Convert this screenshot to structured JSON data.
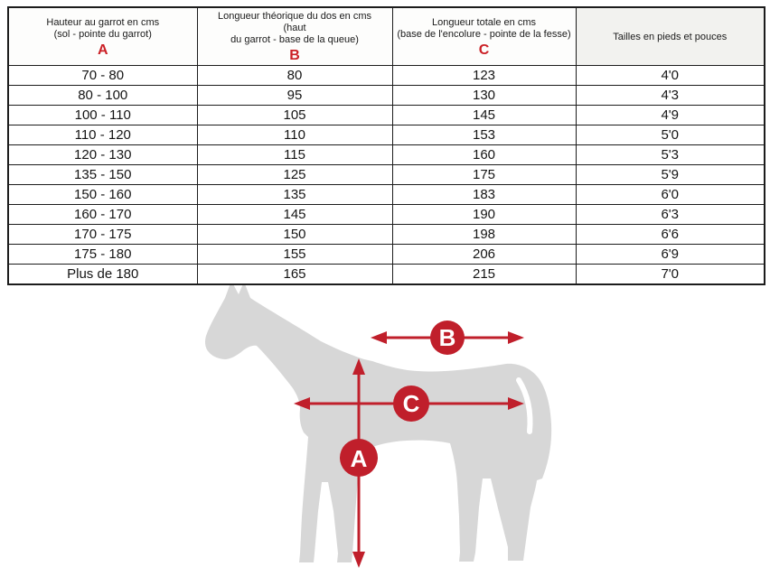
{
  "chart_data": {
    "type": "table",
    "columns": [
      {
        "title_lines": [
          "Hauteur au garrot en cms",
          "(sol - pointe du garrot)"
        ],
        "letter": "A"
      },
      {
        "title_lines": [
          "Longueur théorique du dos en cms      (haut",
          "du garrot - base de la queue)"
        ],
        "letter": "B"
      },
      {
        "title_lines": [
          "Longueur totale en cms",
          "(base de l'encolure - pointe de la fesse)"
        ],
        "letter": "C"
      },
      {
        "title_lines": [
          "Tailles en pieds et pouces"
        ],
        "letter": ""
      }
    ],
    "rows": [
      [
        "70 - 80",
        "80",
        "123",
        "4'0"
      ],
      [
        "80 - 100",
        "95",
        "130",
        "4'3"
      ],
      [
        "100 - 110",
        "105",
        "145",
        "4'9"
      ],
      [
        "110 - 120",
        "110",
        "153",
        "5'0"
      ],
      [
        "120 - 130",
        "115",
        "160",
        "5'3"
      ],
      [
        "135 - 150",
        "125",
        "175",
        "5'9"
      ],
      [
        "150 - 160",
        "135",
        "183",
        "6'0"
      ],
      [
        "160 - 170",
        "145",
        "190",
        "6'3"
      ],
      [
        "170 - 175",
        "150",
        "198",
        "6'6"
      ],
      [
        "175 - 180",
        "155",
        "206",
        "6'9"
      ],
      [
        "Plus de 180",
        "165",
        "215",
        "7'0"
      ]
    ]
  },
  "diagram": {
    "badges": {
      "a": "A",
      "b": "B",
      "c": "C"
    }
  },
  "colors": {
    "measure_red": "#c01f2b",
    "header_letter_red": "#cb2026",
    "horse_gray": "#d7d7d7",
    "table_border": "#1c1c1c"
  }
}
